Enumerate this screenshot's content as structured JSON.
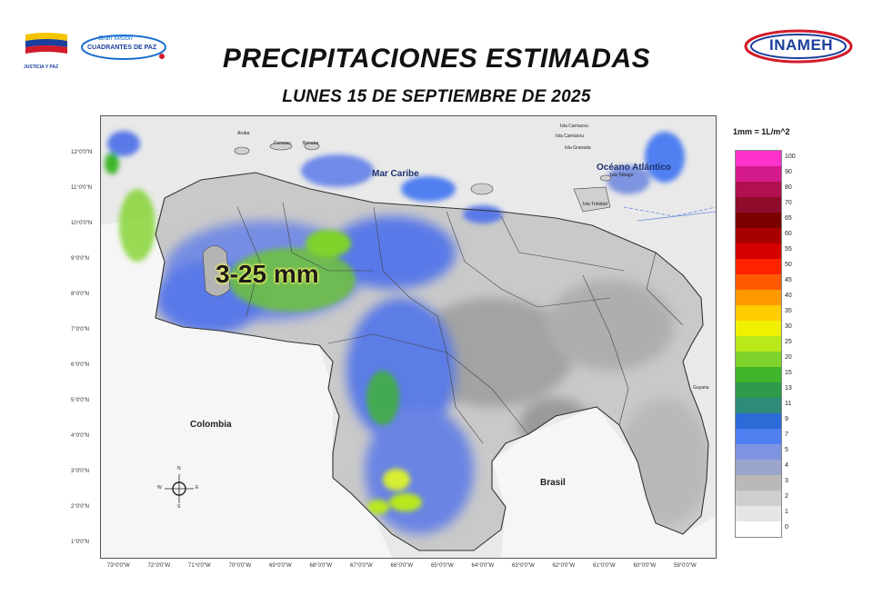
{
  "header": {
    "title": "PRECIPITACIONES ESTIMADAS",
    "subtitle": "LUNES 15 DE SEPTIEMBRE DE 2025",
    "left_logo_caption": "JUSTICIA Y PAZ",
    "mission_logo_line1": "Gran Misión",
    "mission_logo_line2": "CUADRANTES DE PAZ",
    "right_logo_text": "INAMEH"
  },
  "map": {
    "annotation": "3-25 mm",
    "labels": {
      "sea": "Mar Caribe",
      "ocean": "Océano Atlántico",
      "colombia": "Colombia",
      "brasil": "Brasil",
      "guyana": "Guyana",
      "aruba": "Aruba",
      "curazao": "Curazao",
      "bonaire": "Bonaire",
      "islas_caribe_1": "Isla Carriacou",
      "islas_caribe_2": "Isla Carriacou",
      "islas_caribe_3": "Isla Granada",
      "tobago": "Isla Tobago",
      "trinidad": "Isla Trinidad"
    },
    "compass": {
      "n": "N",
      "s": "S",
      "e": "E",
      "w": "W"
    },
    "lat_ticks": [
      "12°0'0\"N",
      "11°0'0\"N",
      "10°0'0\"N",
      "9°0'0\"N",
      "8°0'0\"N",
      "7°0'0\"N",
      "6°0'0\"N",
      "5°0'0\"N",
      "4°0'0\"N",
      "3°0'0\"N",
      "2°0'0\"N",
      "1°0'0\"N"
    ],
    "lon_ticks": [
      "73°0'0\"W",
      "72°0'0\"W",
      "71°0'0\"W",
      "70°0'0\"W",
      "69°0'0\"W",
      "68°0'0\"W",
      "67°0'0\"W",
      "66°0'0\"W",
      "65°0'0\"W",
      "64°0'0\"W",
      "63°0'0\"W",
      "62°0'0\"W",
      "61°0'0\"W",
      "60°0'0\"W",
      "59°0'0\"W"
    ]
  },
  "legend": {
    "title": "1mm = 1L/m^2",
    "levels": [
      {
        "value": "100",
        "color": "#ff33cc"
      },
      {
        "value": "90",
        "color": "#d41a8c"
      },
      {
        "value": "80",
        "color": "#b0104f"
      },
      {
        "value": "70",
        "color": "#8f0b2c"
      },
      {
        "value": "65",
        "color": "#7a0000"
      },
      {
        "value": "60",
        "color": "#a80000"
      },
      {
        "value": "55",
        "color": "#d40000"
      },
      {
        "value": "50",
        "color": "#ff2200"
      },
      {
        "value": "45",
        "color": "#ff5a00"
      },
      {
        "value": "40",
        "color": "#ff9900"
      },
      {
        "value": "35",
        "color": "#ffcc00"
      },
      {
        "value": "30",
        "color": "#f0f000"
      },
      {
        "value": "25",
        "color": "#b8e81a"
      },
      {
        "value": "20",
        "color": "#7fd32a"
      },
      {
        "value": "15",
        "color": "#3eb52a"
      },
      {
        "value": "13",
        "color": "#2e9a4a"
      },
      {
        "value": "11",
        "color": "#2e8a7a"
      },
      {
        "value": "9",
        "color": "#2a6bd8"
      },
      {
        "value": "7",
        "color": "#4f7ff0"
      },
      {
        "value": "5",
        "color": "#7f94e0"
      },
      {
        "value": "4",
        "color": "#9aa6cc"
      },
      {
        "value": "3",
        "color": "#b9b9b9"
      },
      {
        "value": "2",
        "color": "#cecece"
      },
      {
        "value": "1",
        "color": "#e6e6e6"
      },
      {
        "value": "0",
        "color": "#ffffff"
      }
    ]
  }
}
